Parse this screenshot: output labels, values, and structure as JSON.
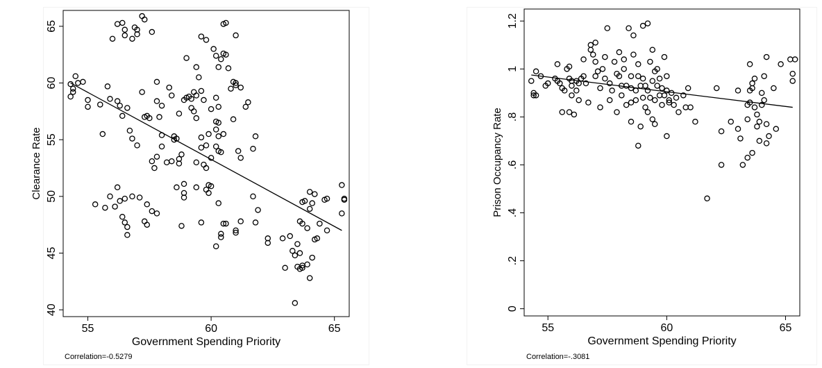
{
  "chart_data": [
    {
      "type": "scatter",
      "xlabel": "Government Spending Priority",
      "ylabel": "Clearance Rate",
      "xlim": [
        54.0,
        65.6
      ],
      "ylim": [
        39.4,
        66.4
      ],
      "xticks": [
        55,
        60,
        65
      ],
      "yticks": [
        40,
        45,
        50,
        55,
        60,
        65
      ],
      "xtick_labels": [
        "55",
        "60",
        "65"
      ],
      "ytick_labels": [
        "40",
        "45",
        "50",
        "55",
        "60",
        "65"
      ],
      "grid": false,
      "fit_line": {
        "x": [
          54.3,
          65.3
        ],
        "y": [
          60.0,
          47.0
        ]
      },
      "annotation": "Correlation=-0.5279",
      "points": [
        [
          54.3,
          59.9
        ],
        [
          54.4,
          59.5
        ],
        [
          54.5,
          60.6
        ],
        [
          54.6,
          60.0
        ],
        [
          54.3,
          58.8
        ],
        [
          54.4,
          59.2
        ],
        [
          54.8,
          60.1
        ],
        [
          55.0,
          58.5
        ],
        [
          55.0,
          57.9
        ],
        [
          55.5,
          58.1
        ],
        [
          55.6,
          55.5
        ],
        [
          55.8,
          59.7
        ],
        [
          55.9,
          58.6
        ],
        [
          56.0,
          63.9
        ],
        [
          56.2,
          58.4
        ],
        [
          56.2,
          65.2
        ],
        [
          56.4,
          65.3
        ],
        [
          56.5,
          64.7
        ],
        [
          56.5,
          64.2
        ],
        [
          56.3,
          58.0
        ],
        [
          56.6,
          57.8
        ],
        [
          56.4,
          57.1
        ],
        [
          56.8,
          63.9
        ],
        [
          56.9,
          64.9
        ],
        [
          57.0,
          64.7
        ],
        [
          57.0,
          64.3
        ],
        [
          57.2,
          65.9
        ],
        [
          57.3,
          65.6
        ],
        [
          57.2,
          59.2
        ],
        [
          57.3,
          57.0
        ],
        [
          57.4,
          57.1
        ],
        [
          57.5,
          56.9
        ],
        [
          56.7,
          55.8
        ],
        [
          56.8,
          55.1
        ],
        [
          57.0,
          54.5
        ],
        [
          57.6,
          64.5
        ],
        [
          57.8,
          60.1
        ],
        [
          57.8,
          58.4
        ],
        [
          58.0,
          58.0
        ],
        [
          57.9,
          57.0
        ],
        [
          57.6,
          53.1
        ],
        [
          57.7,
          52.5
        ],
        [
          57.8,
          53.5
        ],
        [
          58.0,
          55.4
        ],
        [
          58.0,
          54.4
        ],
        [
          58.2,
          53.0
        ],
        [
          58.3,
          59.6
        ],
        [
          58.4,
          58.9
        ],
        [
          58.5,
          55.0
        ],
        [
          58.6,
          55.1
        ],
        [
          58.4,
          53.1
        ],
        [
          58.7,
          53.3
        ],
        [
          58.8,
          53.7
        ],
        [
          58.7,
          52.9
        ],
        [
          58.9,
          51.1
        ],
        [
          58.9,
          50.3
        ],
        [
          58.5,
          55.3
        ],
        [
          58.7,
          57.3
        ],
        [
          58.9,
          58.5
        ],
        [
          59.0,
          58.7
        ],
        [
          59.1,
          58.8
        ],
        [
          59.2,
          58.6
        ],
        [
          59.0,
          62.2
        ],
        [
          59.2,
          57.8
        ],
        [
          59.3,
          59.2
        ],
        [
          59.3,
          57.5
        ],
        [
          59.4,
          58.9
        ],
        [
          59.5,
          60.5
        ],
        [
          59.4,
          61.4
        ],
        [
          59.6,
          59.3
        ],
        [
          59.7,
          58.5
        ],
        [
          59.4,
          56.9
        ],
        [
          59.6,
          55.2
        ],
        [
          59.6,
          54.3
        ],
        [
          59.4,
          53.0
        ],
        [
          59.7,
          52.8
        ],
        [
          59.8,
          52.5
        ],
        [
          59.9,
          51.0
        ],
        [
          59.8,
          50.6
        ],
        [
          59.8,
          54.5
        ],
        [
          60.0,
          53.4
        ],
        [
          60.2,
          56.6
        ],
        [
          60.2,
          55.9
        ],
        [
          60.3,
          56.5
        ],
        [
          60.3,
          55.3
        ],
        [
          60.0,
          57.7
        ],
        [
          59.9,
          55.5
        ],
        [
          59.6,
          64.1
        ],
        [
          59.8,
          63.8
        ],
        [
          60.1,
          63.0
        ],
        [
          60.2,
          62.4
        ],
        [
          60.3,
          61.4
        ],
        [
          60.4,
          62.1
        ],
        [
          60.5,
          62.6
        ],
        [
          60.6,
          62.5
        ],
        [
          60.7,
          61.3
        ],
        [
          60.5,
          65.2
        ],
        [
          60.6,
          65.3
        ],
        [
          60.8,
          59.5
        ],
        [
          60.9,
          60.1
        ],
        [
          61.0,
          60.0
        ],
        [
          61.0,
          59.8
        ],
        [
          61.2,
          59.6
        ],
        [
          60.4,
          53.9
        ],
        [
          60.2,
          54.4
        ],
        [
          60.3,
          54.0
        ],
        [
          60.9,
          56.8
        ],
        [
          61.0,
          64.2
        ],
        [
          60.2,
          58.7
        ],
        [
          60.3,
          57.9
        ],
        [
          61.1,
          54.0
        ],
        [
          61.2,
          53.4
        ],
        [
          61.5,
          58.3
        ],
        [
          61.7,
          54.2
        ],
        [
          61.8,
          55.3
        ],
        [
          61.4,
          57.9
        ],
        [
          60.5,
          55.5
        ],
        [
          55.3,
          49.3
        ],
        [
          55.7,
          49.0
        ],
        [
          55.9,
          50.0
        ],
        [
          56.2,
          50.8
        ],
        [
          56.3,
          49.6
        ],
        [
          56.5,
          49.8
        ],
        [
          56.4,
          48.2
        ],
        [
          56.5,
          47.7
        ],
        [
          56.6,
          47.3
        ],
        [
          56.6,
          46.6
        ],
        [
          56.1,
          49.1
        ],
        [
          56.8,
          50.0
        ],
        [
          57.1,
          49.9
        ],
        [
          57.4,
          49.3
        ],
        [
          57.6,
          48.7
        ],
        [
          57.8,
          48.5
        ],
        [
          57.3,
          47.8
        ],
        [
          57.4,
          47.5
        ],
        [
          58.6,
          50.8
        ],
        [
          58.9,
          49.9
        ],
        [
          58.8,
          47.4
        ],
        [
          59.6,
          47.7
        ],
        [
          59.4,
          50.8
        ],
        [
          59.9,
          50.3
        ],
        [
          60.0,
          50.9
        ],
        [
          60.3,
          49.4
        ],
        [
          60.4,
          46.7
        ],
        [
          60.4,
          46.4
        ],
        [
          60.5,
          47.6
        ],
        [
          60.2,
          45.6
        ],
        [
          60.6,
          47.6
        ],
        [
          61.0,
          47.0
        ],
        [
          61.2,
          47.8
        ],
        [
          61.0,
          46.8
        ],
        [
          61.7,
          50.0
        ],
        [
          61.8,
          47.7
        ],
        [
          61.9,
          48.8
        ],
        [
          62.3,
          46.3
        ],
        [
          62.3,
          45.9
        ],
        [
          62.9,
          46.3
        ],
        [
          63.0,
          43.7
        ],
        [
          63.2,
          46.5
        ],
        [
          63.3,
          45.2
        ],
        [
          63.4,
          44.8
        ],
        [
          63.5,
          43.8
        ],
        [
          63.5,
          45.8
        ],
        [
          63.6,
          45.0
        ],
        [
          63.6,
          43.6
        ],
        [
          63.7,
          43.7
        ],
        [
          63.4,
          40.6
        ],
        [
          63.6,
          47.8
        ],
        [
          63.7,
          49.5
        ],
        [
          63.8,
          49.6
        ],
        [
          63.7,
          47.6
        ],
        [
          63.9,
          47.2
        ],
        [
          64.0,
          48.9
        ],
        [
          64.0,
          50.4
        ],
        [
          64.1,
          49.4
        ],
        [
          64.2,
          50.2
        ],
        [
          64.1,
          44.6
        ],
        [
          64.0,
          42.8
        ],
        [
          64.2,
          46.2
        ],
        [
          64.3,
          46.3
        ],
        [
          64.4,
          47.6
        ],
        [
          64.6,
          49.7
        ],
        [
          64.7,
          49.8
        ],
        [
          64.7,
          47.0
        ],
        [
          65.3,
          51.0
        ],
        [
          65.3,
          48.5
        ],
        [
          65.4,
          49.8
        ],
        [
          65.4,
          49.7
        ],
        [
          63.7,
          43.9
        ],
        [
          63.9,
          44.0
        ]
      ]
    },
    {
      "type": "scatter",
      "xlabel": "Government Spending Priority",
      "ylabel": "Prison Occupancy Rate",
      "xlim": [
        54.0,
        65.6
      ],
      "ylim": [
        -0.03,
        1.25
      ],
      "xticks": [
        55,
        60,
        65
      ],
      "yticks": [
        0,
        0.2,
        0.4,
        0.6,
        0.8,
        1.0,
        1.2
      ],
      "xtick_labels": [
        "55",
        "60",
        "65"
      ],
      "ytick_labels": [
        "0",
        ".2",
        ".4",
        ".6",
        ".8",
        "1",
        "1.2"
      ],
      "grid": false,
      "fit_line": {
        "x": [
          54.3,
          65.3
        ],
        "y": [
          0.975,
          0.84
        ]
      },
      "annotation": "Correlation=-.3081",
      "points": [
        [
          54.3,
          0.95
        ],
        [
          54.4,
          0.9
        ],
        [
          54.5,
          0.89
        ],
        [
          54.4,
          0.89
        ],
        [
          54.5,
          0.99
        ],
        [
          54.7,
          0.97
        ],
        [
          54.9,
          0.93
        ],
        [
          55.0,
          0.94
        ],
        [
          55.3,
          0.96
        ],
        [
          55.4,
          1.02
        ],
        [
          55.4,
          0.95
        ],
        [
          55.5,
          0.94
        ],
        [
          55.6,
          0.92
        ],
        [
          55.7,
          0.91
        ],
        [
          55.6,
          0.82
        ],
        [
          55.8,
          1.0
        ],
        [
          55.9,
          1.01
        ],
        [
          55.9,
          0.96
        ],
        [
          56.0,
          0.93
        ],
        [
          56.0,
          0.89
        ],
        [
          55.9,
          0.82
        ],
        [
          56.1,
          0.81
        ],
        [
          56.2,
          0.95
        ],
        [
          56.3,
          0.94
        ],
        [
          56.2,
          0.91
        ],
        [
          56.3,
          0.87
        ],
        [
          56.4,
          0.96
        ],
        [
          56.5,
          1.04
        ],
        [
          56.5,
          0.97
        ],
        [
          56.6,
          0.94
        ],
        [
          56.7,
          0.86
        ],
        [
          56.8,
          1.08
        ],
        [
          56.8,
          1.1
        ],
        [
          56.9,
          1.06
        ],
        [
          57.0,
          1.03
        ],
        [
          57.0,
          0.97
        ],
        [
          57.0,
          1.11
        ],
        [
          57.1,
          0.99
        ],
        [
          57.2,
          0.92
        ],
        [
          57.2,
          0.84
        ],
        [
          57.3,
          1.0
        ],
        [
          57.4,
          0.96
        ],
        [
          57.4,
          1.05
        ],
        [
          57.5,
          1.17
        ],
        [
          57.6,
          0.94
        ],
        [
          57.7,
          0.91
        ],
        [
          57.6,
          0.87
        ],
        [
          57.8,
          1.03
        ],
        [
          57.9,
          0.98
        ],
        [
          57.9,
          0.82
        ],
        [
          58.0,
          1.07
        ],
        [
          58.0,
          0.97
        ],
        [
          58.1,
          0.93
        ],
        [
          58.1,
          0.89
        ],
        [
          58.2,
          1.04
        ],
        [
          58.2,
          1.0
        ],
        [
          58.3,
          0.93
        ],
        [
          58.3,
          0.85
        ],
        [
          58.4,
          1.17
        ],
        [
          58.5,
          0.97
        ],
        [
          58.5,
          0.92
        ],
        [
          58.5,
          0.86
        ],
        [
          58.5,
          0.78
        ],
        [
          58.6,
          1.06
        ],
        [
          58.6,
          1.14
        ],
        [
          58.7,
          0.91
        ],
        [
          58.7,
          0.87
        ],
        [
          58.8,
          1.02
        ],
        [
          58.8,
          0.97
        ],
        [
          58.8,
          0.68
        ],
        [
          58.9,
          0.93
        ],
        [
          58.9,
          0.76
        ],
        [
          59.0,
          1.18
        ],
        [
          59.0,
          0.96
        ],
        [
          59.0,
          0.88
        ],
        [
          59.1,
          0.93
        ],
        [
          59.1,
          0.84
        ],
        [
          59.2,
          1.19
        ],
        [
          59.2,
          0.91
        ],
        [
          59.2,
          0.82
        ],
        [
          59.3,
          1.03
        ],
        [
          59.3,
          0.88
        ],
        [
          59.4,
          1.08
        ],
        [
          59.4,
          0.95
        ],
        [
          59.4,
          0.79
        ],
        [
          59.5,
          0.99
        ],
        [
          59.5,
          0.87
        ],
        [
          59.5,
          0.77
        ],
        [
          59.6,
          1.0
        ],
        [
          59.6,
          0.93
        ],
        [
          59.7,
          0.96
        ],
        [
          59.7,
          0.89
        ],
        [
          59.8,
          0.92
        ],
        [
          59.8,
          0.85
        ],
        [
          59.9,
          1.05
        ],
        [
          59.9,
          0.89
        ],
        [
          60.0,
          0.97
        ],
        [
          60.0,
          0.91
        ],
        [
          60.0,
          0.72
        ],
        [
          60.1,
          0.87
        ],
        [
          60.1,
          0.86
        ],
        [
          60.2,
          0.9
        ],
        [
          60.3,
          0.85
        ],
        [
          60.4,
          0.88
        ],
        [
          60.5,
          0.82
        ],
        [
          60.7,
          0.89
        ],
        [
          60.8,
          0.84
        ],
        [
          60.9,
          0.92
        ],
        [
          61.0,
          0.84
        ],
        [
          61.2,
          0.78
        ],
        [
          61.7,
          0.46
        ],
        [
          62.1,
          0.92
        ],
        [
          62.3,
          0.74
        ],
        [
          62.3,
          0.6
        ],
        [
          62.7,
          0.78
        ],
        [
          63.0,
          0.91
        ],
        [
          63.0,
          0.75
        ],
        [
          63.1,
          0.71
        ],
        [
          63.2,
          0.6
        ],
        [
          63.4,
          0.85
        ],
        [
          63.4,
          0.79
        ],
        [
          63.5,
          0.86
        ],
        [
          63.5,
          0.91
        ],
        [
          63.6,
          0.94
        ],
        [
          63.6,
          0.92
        ],
        [
          63.5,
          1.02
        ],
        [
          63.7,
          0.96
        ],
        [
          63.7,
          0.84
        ],
        [
          63.8,
          0.81
        ],
        [
          63.8,
          0.76
        ],
        [
          63.9,
          0.78
        ],
        [
          63.6,
          0.65
        ],
        [
          63.9,
          0.7
        ],
        [
          64.0,
          0.85
        ],
        [
          64.0,
          0.9
        ],
        [
          64.1,
          0.87
        ],
        [
          64.1,
          0.97
        ],
        [
          64.2,
          1.05
        ],
        [
          64.2,
          0.77
        ],
        [
          64.2,
          0.69
        ],
        [
          64.3,
          0.72
        ],
        [
          64.5,
          0.92
        ],
        [
          64.6,
          0.75
        ],
        [
          64.8,
          1.02
        ],
        [
          65.2,
          1.04
        ],
        [
          65.3,
          0.98
        ],
        [
          65.3,
          0.95
        ],
        [
          65.4,
          1.04
        ],
        [
          63.4,
          0.63
        ],
        [
          56.0,
          0.95
        ]
      ]
    }
  ]
}
